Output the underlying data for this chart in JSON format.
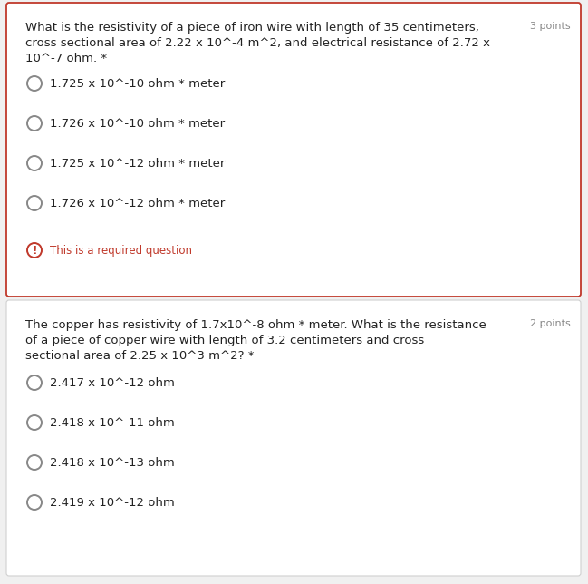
{
  "bg_color": "#f0f0f0",
  "card1_bg": "#ffffff",
  "card2_bg": "#ffffff",
  "card1_border_color": "#c0392b",
  "card2_border_color": "#d0d0d0",
  "q1_line1": "What is the resistivity of a piece of iron wire with length of 35 centimeters,",
  "q1_line2": "cross sectional area of 2.22 x 10^-4 m^2, and electrical resistance of 2.72 x",
  "q1_line3": "10^-7 ohm. *",
  "q1_points": "3 points",
  "q1_options": [
    "1.725 x 10^-10 ohm * meter",
    "1.726 x 10^-10 ohm * meter",
    "1.725 x 10^-12 ohm * meter",
    "1.726 x 10^-12 ohm * meter"
  ],
  "q1_required_text": "This is a required question",
  "q1_required_color": "#c0392b",
  "q2_line1": "The copper has resistivity of 1.7x10^-8 ohm * meter. What is the resistance",
  "q2_line2": "of a piece of copper wire with length of 3.2 centimeters and cross",
  "q2_line3": "sectional area of 2.25 x 10^3 m^2? *",
  "q2_points": "2 points",
  "q2_options": [
    "2.417 x 10^-12 ohm",
    "2.418 x 10^-11 ohm",
    "2.418 x 10^-13 ohm",
    "2.419 x 10^-12 ohm"
  ],
  "text_color": "#222222",
  "points_color": "#888888",
  "radio_edge_color": "#888888",
  "font_size_q": 9.5,
  "font_size_pts": 8.0,
  "font_size_opt": 9.5,
  "font_size_req": 8.5
}
